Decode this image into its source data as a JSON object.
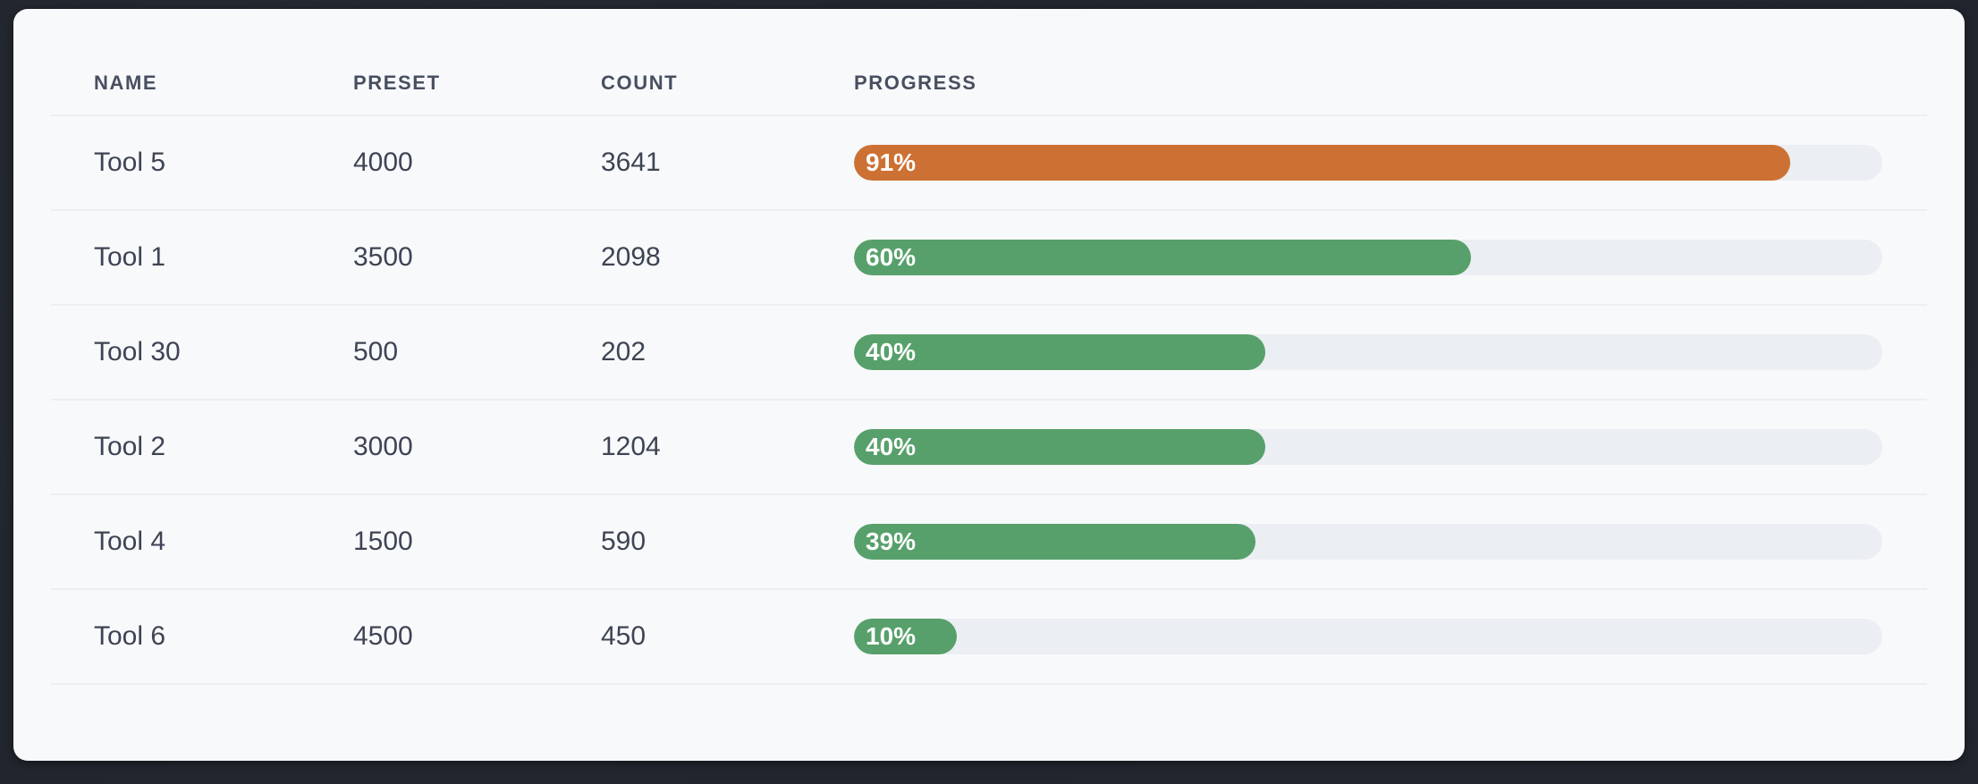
{
  "colors": {
    "page_background": "#21252d",
    "card_background": "#f8f9fb",
    "separator": "#eceef3",
    "track": "#ebeef2",
    "header_text": "#474f60",
    "cell_text": "#3d4453",
    "bar_label_text": "#ffffff",
    "bar_orange": "#cc7133",
    "bar_green": "#57a06b"
  },
  "table": {
    "columns": [
      "NAME",
      "PRESET",
      "COUNT",
      "PROGRESS"
    ],
    "rows": [
      {
        "name": "Tool 5",
        "preset": "4000",
        "count": "3641",
        "progress": 91,
        "progress_label": "91%",
        "bar_color": "#cc7133"
      },
      {
        "name": "Tool 1",
        "preset": "3500",
        "count": "2098",
        "progress": 60,
        "progress_label": "60%",
        "bar_color": "#57a06b"
      },
      {
        "name": "Tool 30",
        "preset": "500",
        "count": "202",
        "progress": 40,
        "progress_label": "40%",
        "bar_color": "#57a06b"
      },
      {
        "name": "Tool 2",
        "preset": "3000",
        "count": "1204",
        "progress": 40,
        "progress_label": "40%",
        "bar_color": "#57a06b"
      },
      {
        "name": "Tool 4",
        "preset": "1500",
        "count": "590",
        "progress": 39,
        "progress_label": "39%",
        "bar_color": "#57a06b"
      },
      {
        "name": "Tool 6",
        "preset": "4500",
        "count": "450",
        "progress": 10,
        "progress_label": "10%",
        "bar_color": "#57a06b"
      }
    ]
  }
}
